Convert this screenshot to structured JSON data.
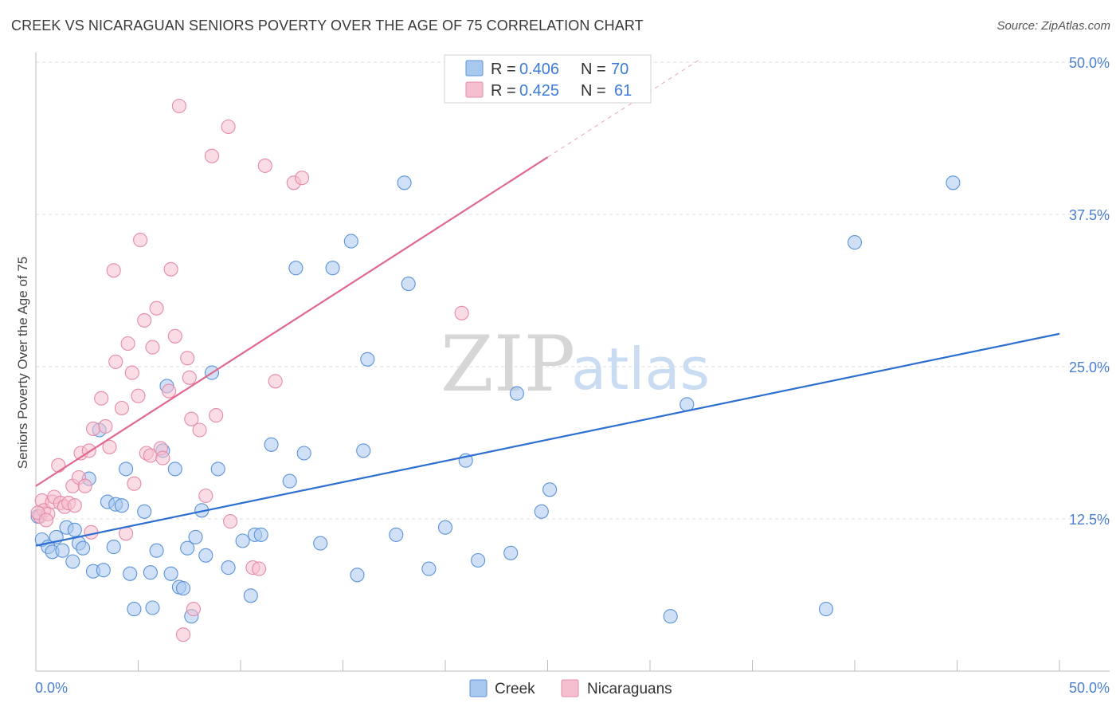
{
  "title": "CREEK VS NICARAGUAN SENIORS POVERTY OVER THE AGE OF 75 CORRELATION CHART",
  "source": "Source: ZipAtlas.com",
  "watermark": {
    "zip": "ZIP",
    "atlas": "atlas"
  },
  "colors": {
    "creek_fill": "#a9c8f0",
    "creek_stroke": "#5b93d9",
    "creek_line": "#2d6fcf",
    "nic_fill": "#f6bfd0",
    "nic_stroke": "#e58aa8",
    "nic_line": "#e0688f",
    "grid": "#dddddd",
    "tick": "#4a7fd0"
  },
  "legend": {
    "rows": [
      {
        "r_label": "R =",
        "r_value": "0.406",
        "n_label": "N =",
        "n_value": "70",
        "series": "creek"
      },
      {
        "r_label": "R =",
        "r_value": "0.425",
        "n_label": "N =",
        "n_value": "61",
        "series": "nicaraguans"
      }
    ]
  },
  "chart_data": {
    "type": "scatter",
    "title": "CREEK VS NICARAGUAN SENIORS POVERTY OVER THE AGE OF 75 CORRELATION CHART",
    "xlabel": "",
    "ylabel": "Seniors Poverty Over the Age of 75",
    "xlim": [
      0,
      50
    ],
    "ylim": [
      0,
      50
    ],
    "x_tick_labels": [
      "0.0%",
      "50.0%"
    ],
    "y_ticks": [
      12.5,
      25.0,
      37.5,
      50.0
    ],
    "y_tick_labels": [
      "12.5%",
      "25.0%",
      "37.5%",
      "50.0%"
    ],
    "grid": true,
    "legend_position": "top-center",
    "series": [
      {
        "name": "Creek",
        "color": "#a9c8f0",
        "trend": {
          "x": [
            0,
            50
          ],
          "y": [
            10.3,
            27.7
          ]
        },
        "points": [
          [
            0.3,
            10.8
          ],
          [
            0.6,
            10.2
          ],
          [
            0.8,
            9.8
          ],
          [
            1.0,
            11.0
          ],
          [
            1.3,
            9.9
          ],
          [
            1.5,
            11.8
          ],
          [
            1.8,
            9.0
          ],
          [
            1.9,
            11.6
          ],
          [
            2.1,
            10.5
          ],
          [
            2.3,
            10.1
          ],
          [
            2.6,
            15.8
          ],
          [
            2.8,
            8.2
          ],
          [
            3.1,
            19.8
          ],
          [
            3.3,
            8.3
          ],
          [
            3.5,
            13.9
          ],
          [
            3.8,
            10.2
          ],
          [
            3.9,
            13.7
          ],
          [
            4.2,
            13.6
          ],
          [
            4.4,
            16.6
          ],
          [
            4.6,
            8.0
          ],
          [
            4.8,
            5.1
          ],
          [
            5.3,
            13.1
          ],
          [
            5.6,
            8.1
          ],
          [
            5.7,
            5.2
          ],
          [
            5.9,
            9.9
          ],
          [
            6.2,
            18.1
          ],
          [
            6.4,
            23.4
          ],
          [
            6.6,
            8.0
          ],
          [
            6.8,
            16.6
          ],
          [
            7.0,
            6.9
          ],
          [
            7.2,
            6.8
          ],
          [
            7.4,
            10.1
          ],
          [
            7.6,
            4.5
          ],
          [
            7.8,
            11.0
          ],
          [
            8.1,
            13.2
          ],
          [
            8.3,
            9.5
          ],
          [
            8.6,
            24.5
          ],
          [
            8.9,
            16.6
          ],
          [
            9.4,
            8.5
          ],
          [
            10.1,
            10.7
          ],
          [
            10.5,
            6.2
          ],
          [
            10.7,
            11.2
          ],
          [
            11.0,
            11.2
          ],
          [
            11.5,
            18.6
          ],
          [
            12.4,
            15.6
          ],
          [
            12.7,
            33.1
          ],
          [
            13.1,
            17.9
          ],
          [
            13.9,
            10.5
          ],
          [
            14.5,
            33.1
          ],
          [
            15.4,
            35.3
          ],
          [
            15.7,
            7.9
          ],
          [
            16.0,
            18.1
          ],
          [
            16.2,
            25.6
          ],
          [
            17.6,
            11.2
          ],
          [
            18.0,
            40.1
          ],
          [
            18.2,
            31.8
          ],
          [
            19.2,
            8.4
          ],
          [
            20.0,
            11.8
          ],
          [
            21.0,
            17.3
          ],
          [
            21.6,
            9.1
          ],
          [
            23.2,
            9.7
          ],
          [
            23.5,
            22.8
          ],
          [
            24.7,
            13.1
          ],
          [
            25.1,
            14.9
          ],
          [
            31.0,
            4.5
          ],
          [
            31.8,
            21.9
          ],
          [
            38.6,
            5.1
          ],
          [
            40.0,
            35.2
          ],
          [
            44.8,
            40.1
          ],
          [
            0.1,
            12.7
          ]
        ]
      },
      {
        "name": "Nicaraguans",
        "color": "#f6bfd0",
        "trend": {
          "x": [
            0,
            25
          ],
          "y": [
            15.2,
            42.2
          ]
        },
        "trend_dashed": {
          "x": [
            25,
            32.5
          ],
          "y": [
            42.2,
            50.3
          ]
        },
        "points": [
          [
            0.2,
            12.7
          ],
          [
            0.3,
            14.0
          ],
          [
            0.4,
            13.2
          ],
          [
            0.6,
            12.9
          ],
          [
            0.8,
            13.9
          ],
          [
            0.9,
            14.3
          ],
          [
            1.1,
            16.9
          ],
          [
            1.2,
            13.8
          ],
          [
            1.4,
            13.5
          ],
          [
            1.6,
            13.8
          ],
          [
            1.8,
            15.2
          ],
          [
            1.9,
            13.6
          ],
          [
            2.1,
            15.9
          ],
          [
            2.2,
            17.9
          ],
          [
            2.4,
            15.2
          ],
          [
            2.6,
            18.1
          ],
          [
            2.7,
            11.4
          ],
          [
            2.8,
            19.9
          ],
          [
            3.2,
            22.4
          ],
          [
            3.4,
            20.1
          ],
          [
            3.6,
            18.4
          ],
          [
            3.8,
            32.9
          ],
          [
            3.9,
            25.4
          ],
          [
            4.2,
            21.6
          ],
          [
            4.4,
            11.3
          ],
          [
            4.5,
            26.9
          ],
          [
            4.7,
            24.5
          ],
          [
            4.8,
            15.4
          ],
          [
            5.0,
            22.6
          ],
          [
            5.1,
            35.4
          ],
          [
            5.3,
            28.8
          ],
          [
            5.4,
            17.9
          ],
          [
            5.6,
            17.7
          ],
          [
            5.7,
            26.6
          ],
          [
            5.9,
            29.8
          ],
          [
            6.1,
            18.3
          ],
          [
            6.2,
            17.5
          ],
          [
            6.5,
            23.0
          ],
          [
            6.6,
            33.0
          ],
          [
            6.8,
            27.5
          ],
          [
            7.0,
            46.4
          ],
          [
            7.2,
            3.0
          ],
          [
            7.4,
            25.7
          ],
          [
            7.5,
            24.1
          ],
          [
            7.6,
            20.7
          ],
          [
            7.7,
            5.1
          ],
          [
            8.0,
            19.8
          ],
          [
            8.3,
            14.4
          ],
          [
            8.6,
            42.3
          ],
          [
            8.8,
            21.0
          ],
          [
            9.4,
            44.7
          ],
          [
            9.5,
            12.3
          ],
          [
            10.6,
            8.5
          ],
          [
            10.9,
            8.4
          ],
          [
            11.2,
            41.5
          ],
          [
            11.7,
            23.8
          ],
          [
            12.6,
            40.1
          ],
          [
            13.0,
            40.5
          ],
          [
            20.8,
            29.4
          ],
          [
            0.1,
            13.0
          ],
          [
            0.5,
            12.4
          ]
        ]
      }
    ]
  },
  "bottom_legend": [
    {
      "label": "Creek",
      "series": "creek"
    },
    {
      "label": "Nicaraguans",
      "series": "nicaraguans"
    }
  ]
}
